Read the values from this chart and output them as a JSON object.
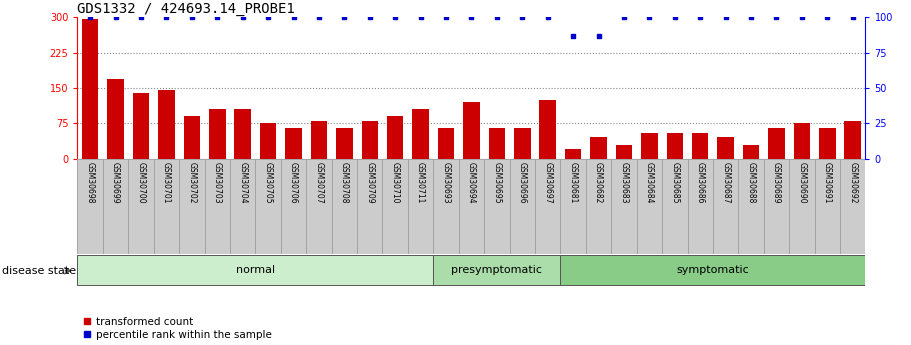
{
  "title": "GDS1332 / 424693.14_PROBE1",
  "samples": [
    "GSM30698",
    "GSM30699",
    "GSM30700",
    "GSM30701",
    "GSM30702",
    "GSM30703",
    "GSM30704",
    "GSM30705",
    "GSM30706",
    "GSM30707",
    "GSM30708",
    "GSM30709",
    "GSM30710",
    "GSM30711",
    "GSM30693",
    "GSM30694",
    "GSM30695",
    "GSM30696",
    "GSM30697",
    "GSM30681",
    "GSM30682",
    "GSM30683",
    "GSM30684",
    "GSM30685",
    "GSM30686",
    "GSM30687",
    "GSM30688",
    "GSM30689",
    "GSM30690",
    "GSM30691",
    "GSM30692"
  ],
  "bar_values": [
    296,
    168,
    140,
    145,
    90,
    105,
    105,
    75,
    65,
    80,
    65,
    80,
    90,
    105,
    65,
    120,
    65,
    65,
    125,
    20,
    45,
    30,
    55,
    55,
    55,
    45,
    30,
    65,
    75,
    65,
    80
  ],
  "percentile_values": [
    100,
    100,
    100,
    100,
    100,
    100,
    100,
    100,
    100,
    100,
    100,
    100,
    100,
    100,
    100,
    100,
    100,
    100,
    100,
    87,
    87,
    100,
    100,
    100,
    100,
    100,
    100,
    100,
    100,
    100,
    100
  ],
  "disease_groups": [
    {
      "label": "normal",
      "start": 0,
      "end": 14
    },
    {
      "label": "presymptomatic",
      "start": 14,
      "end": 19
    },
    {
      "label": "symptomatic",
      "start": 19,
      "end": 31
    }
  ],
  "group_colors": [
    "#cceecc",
    "#aaddaa",
    "#88cc88"
  ],
  "bar_color": "#cc0000",
  "dot_color": "#0000cc",
  "ylim_left": [
    0,
    300
  ],
  "ylim_right": [
    0,
    100
  ],
  "yticks_left": [
    0,
    75,
    150,
    225,
    300
  ],
  "yticks_right": [
    0,
    25,
    50,
    75,
    100
  ],
  "grid_color": "#888888",
  "disease_state_label": "disease state",
  "legend_bar_label": "transformed count",
  "legend_dot_label": "percentile rank within the sample",
  "title_fontsize": 10,
  "tick_fontsize": 7,
  "sample_fontsize": 5.5,
  "label_fontsize": 8
}
